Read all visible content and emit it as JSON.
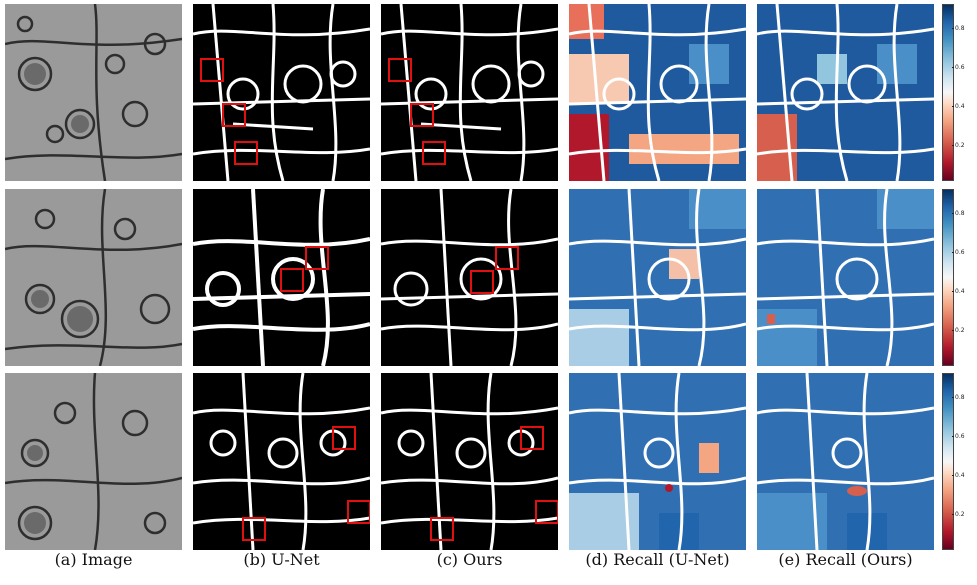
{
  "captions": [
    "(a) Image",
    "(b) U-Net",
    "(c) Ours",
    "(d) Recall (U-Net)",
    "(e) Recall (Ours)"
  ],
  "colorbar": {
    "ticks": [
      "0.8",
      "0.6",
      "0.4",
      "0.2"
    ],
    "tick_values": [
      0.8,
      0.6,
      0.4,
      0.2
    ],
    "range": [
      0.05,
      0.95
    ],
    "colormap": "RdBu"
  },
  "colors": {
    "em_gray": "#9a9a9a",
    "membrane": "#ffffff",
    "background_black": "#000000",
    "highlight_box": "#e01010",
    "recall_high": "#1f5a9e",
    "recall_mid": "#4a8fc8",
    "recall_low": "#b2182b"
  }
}
